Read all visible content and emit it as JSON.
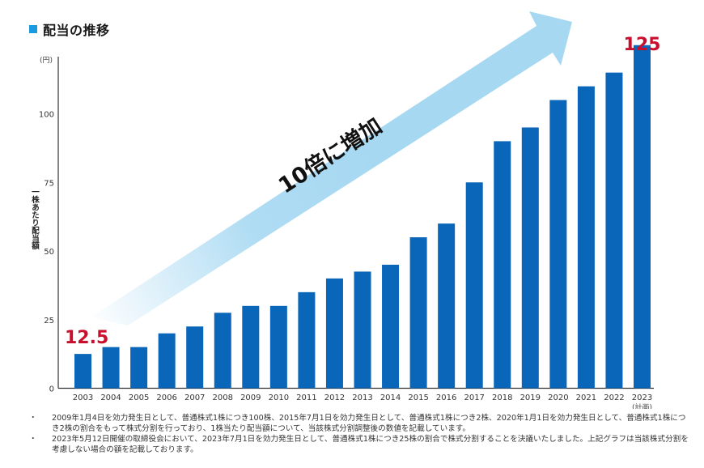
{
  "title": "配当の推移",
  "colors": {
    "title_marker": "#1a9be0",
    "bar": "#0a66b8",
    "highlight_label": "#c8102e",
    "arrow": "#a6d8f2",
    "axis": "#333333"
  },
  "annotations": {
    "arrow_text": "10倍に増加",
    "start_value_label": "12.5",
    "end_value_label": "125"
  },
  "notes": [
    {
      "bullet": "・",
      "text": "2009年1月4日を効力発生日として、普通株式1株につき100株、2015年7月1日を効力発生日として、普通株式1株につき2株、2020年1月1日を効力発生日として、普通株式1株につき2株の割合をもって株式分割を行っており、1株当たり配当額について、当該株式分割調整後の数値を記載しています。"
    },
    {
      "bullet": "・",
      "text": "2023年5月12日開催の取締役会において、2023年7月1日を効力発生日として、普通株式1株につき25株の割合で株式分割することを決議いたしました。上記グラフは当該株式分割を考慮しない場合の額を記載しております。"
    }
  ],
  "chart_data": {
    "type": "bar",
    "title": "配当の推移",
    "xlabel": "",
    "ylabel": "一株あたり配当額",
    "yunit": "(円)",
    "ylim": [
      0,
      125
    ],
    "yticks": [
      0,
      25,
      50,
      75,
      100
    ],
    "grid": false,
    "legend": null,
    "categories": [
      "2003",
      "2004",
      "2005",
      "2006",
      "2007",
      "2008",
      "2009",
      "2010",
      "2011",
      "2012",
      "2013",
      "2014",
      "2015",
      "2016",
      "2017",
      "2018",
      "2019",
      "2020",
      "2021",
      "2022",
      "2023"
    ],
    "category_sublabels": {
      "2023": "(計画)"
    },
    "values": [
      12.5,
      15,
      15,
      20,
      22.5,
      27.5,
      30,
      30,
      35,
      40,
      42.5,
      45,
      55,
      60,
      75,
      90,
      95,
      105,
      110,
      115,
      125
    ],
    "data_labels": [
      {
        "category": "2003",
        "text": "12.5"
      },
      {
        "category": "2023",
        "text": "125"
      }
    ],
    "annotation": "10倍に増加"
  }
}
